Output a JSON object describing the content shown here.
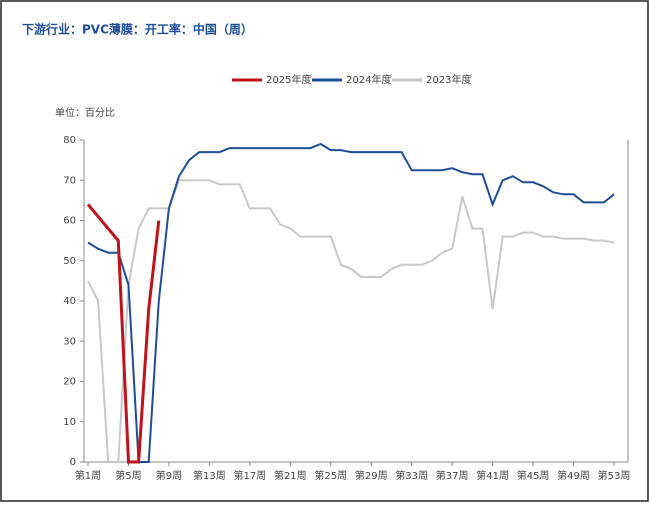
{
  "chart_data": {
    "type": "line",
    "title": "下游行业：PVC薄膜：开工率：中国（周）",
    "unit_label": "单位：百分比",
    "categories": [
      "第1周",
      null,
      null,
      null,
      "第5周",
      null,
      null,
      null,
      "第9周",
      null,
      null,
      null,
      "第13周",
      null,
      null,
      null,
      "第17周",
      null,
      null,
      null,
      "第21周",
      null,
      null,
      null,
      "第25周",
      null,
      null,
      null,
      "第29周",
      null,
      null,
      null,
      "第33周",
      null,
      null,
      null,
      "第37周",
      null,
      null,
      null,
      "第41周",
      null,
      null,
      null,
      "第45周",
      null,
      null,
      null,
      "第49周",
      null,
      null,
      null,
      "第53周"
    ],
    "series": [
      {
        "name": "2025年度",
        "color": "#c0121b",
        "values": [
          64,
          61,
          58,
          55,
          0,
          0,
          38,
          60,
          null,
          null,
          null,
          null,
          null,
          null,
          null,
          null,
          null,
          null,
          null,
          null,
          null,
          null,
          null,
          null,
          null,
          null,
          null,
          null,
          null,
          null,
          null,
          null,
          null,
          null,
          null,
          null,
          null,
          null,
          null,
          null,
          null,
          null,
          null,
          null,
          null,
          null,
          null,
          null,
          null,
          null,
          null,
          null,
          null
        ]
      },
      {
        "name": "2024年度",
        "color": "#1f4e96",
        "values": [
          54.5,
          53,
          52,
          52,
          44,
          0,
          0,
          40,
          63,
          71,
          75,
          77,
          77,
          77,
          78,
          78,
          78,
          78,
          78,
          78,
          78,
          78,
          78,
          79,
          77.5,
          77.5,
          77,
          77,
          77,
          77,
          77,
          77,
          72.5,
          72.5,
          72.5,
          72.5,
          73,
          72,
          71.5,
          71.5,
          64,
          70,
          71,
          69.5,
          69.5,
          68.5,
          67,
          66.5,
          66.5,
          64.5,
          64.5,
          64.5,
          66.5
        ]
      },
      {
        "name": "2023年度",
        "color": "#c8c8c8",
        "values": [
          45,
          40,
          0,
          0,
          44,
          58,
          63,
          63,
          63,
          70,
          70,
          70,
          70,
          69,
          69,
          69,
          63,
          63,
          63,
          59,
          58,
          56,
          56,
          56,
          56,
          49,
          48,
          46,
          46,
          46,
          48,
          49,
          49,
          49,
          50,
          52,
          53,
          66,
          58,
          58,
          38,
          56,
          56,
          57,
          57,
          56,
          56,
          55.5,
          55.5,
          55.5,
          55,
          55,
          54.5
        ]
      }
    ],
    "ylim": [
      0,
      80
    ],
    "yticks": [
      0,
      10,
      20,
      30,
      40,
      50,
      60,
      70,
      80
    ],
    "legend": "top"
  }
}
